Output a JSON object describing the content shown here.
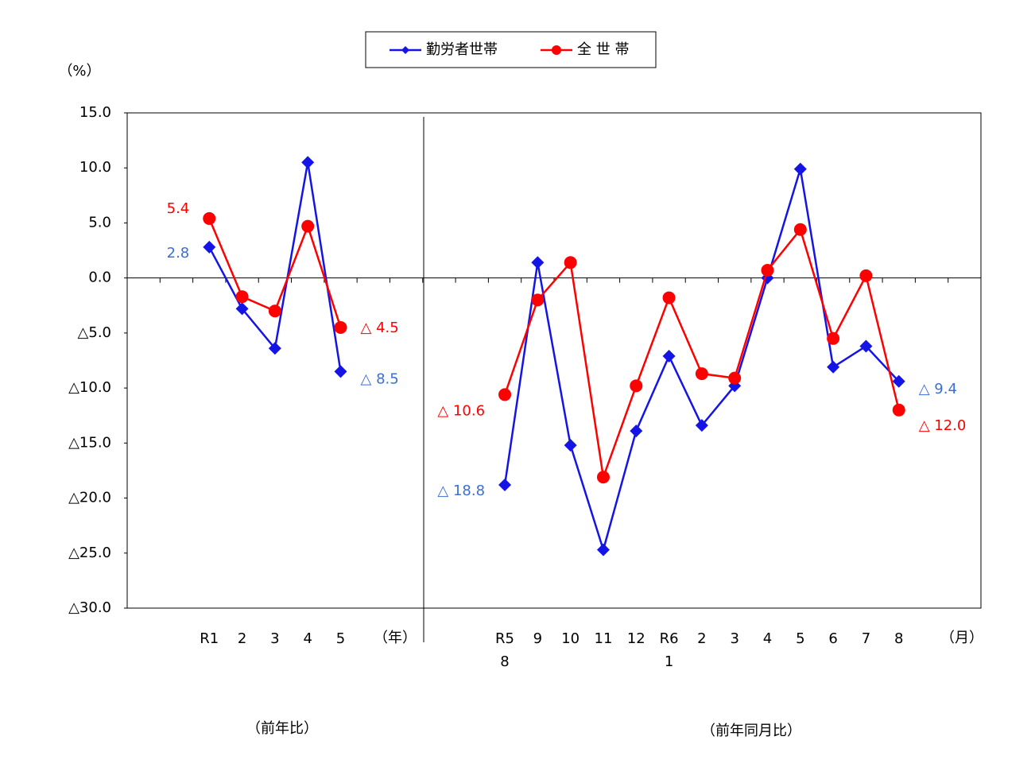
{
  "chart_data": {
    "type": "line",
    "y_label": "（%）",
    "categories": [
      null,
      null,
      "R1",
      "2",
      "3",
      "4",
      "5",
      null,
      null,
      null,
      null,
      "R5\n8",
      "9",
      "10",
      "11",
      "12",
      "R6\n1",
      "2",
      "3",
      "4",
      "5",
      "6",
      "7",
      "8",
      null,
      null
    ],
    "series": [
      {
        "name": "勤労者世帯",
        "color": "#1414e6",
        "marker": "diamond",
        "value_label_color": "#3b6fd6",
        "values": [
          null,
          null,
          2.8,
          -2.8,
          -6.4,
          10.5,
          -8.5,
          null,
          null,
          null,
          null,
          -18.8,
          1.4,
          -15.2,
          -24.7,
          -13.9,
          -7.1,
          -13.4,
          -9.8,
          0.0,
          9.9,
          -8.1,
          -6.2,
          -9.4,
          null,
          null
        ],
        "value_labels": [
          null,
          null,
          "2.8",
          null,
          null,
          null,
          "△ 8.5",
          null,
          null,
          null,
          null,
          "△ 18.8",
          null,
          null,
          null,
          null,
          null,
          null,
          null,
          null,
          null,
          null,
          null,
          "△ 9.4",
          null,
          null
        ]
      },
      {
        "name": "全 世 帯",
        "color": "#ff0000",
        "marker": "circle",
        "value_label_color": "#ff0000",
        "values": [
          null,
          null,
          5.4,
          -1.7,
          -3.0,
          4.7,
          -4.5,
          null,
          null,
          null,
          null,
          -10.6,
          -2.0,
          1.4,
          -18.1,
          -9.8,
          -1.8,
          -8.7,
          -9.1,
          0.7,
          4.4,
          -5.5,
          0.2,
          -12.0,
          null,
          null
        ],
        "value_labels": [
          null,
          null,
          "5.4",
          null,
          null,
          null,
          "△ 4.5",
          null,
          null,
          null,
          null,
          "△ 10.6",
          null,
          null,
          null,
          null,
          null,
          null,
          null,
          null,
          null,
          null,
          null,
          "△ 12.0",
          null,
          null
        ]
      }
    ],
    "ylim": [
      -30,
      15
    ],
    "yticks": [
      {
        "value": 15,
        "label": "15.0"
      },
      {
        "value": 10,
        "label": "10.0"
      },
      {
        "value": 5,
        "label": "5.0"
      },
      {
        "value": 0,
        "label": "0.0"
      },
      {
        "value": -5,
        "label": "△5.0"
      },
      {
        "value": -10,
        "label": "△10.0"
      },
      {
        "value": -15,
        "label": "△15.0"
      },
      {
        "value": -20,
        "label": "△20.0"
      },
      {
        "value": -25,
        "label": "△25.0"
      },
      {
        "value": -30,
        "label": "△30.0"
      }
    ],
    "annotations": [
      "（年）",
      "（月）",
      "（前年比）",
      "（前年同月比）"
    ],
    "legend": "top"
  }
}
